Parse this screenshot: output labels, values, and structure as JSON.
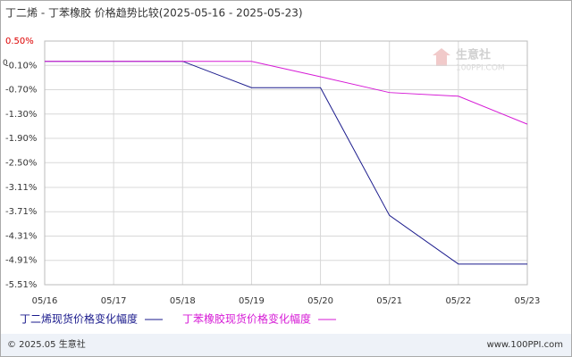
{
  "chart_data": {
    "type": "line",
    "title": "丁二烯 - 丁苯橡胶 价格趋势比较(2025-05-16 - 2025-05-23)",
    "categories": [
      "05/16",
      "05/17",
      "05/18",
      "05/19",
      "05/20",
      "05/21",
      "05/22",
      "05/23"
    ],
    "series": [
      {
        "name": "丁二烯现货价格变化幅度",
        "color": "#1a1a8c",
        "values": [
          0,
          0,
          0,
          -0.65,
          -0.65,
          -3.8,
          -5.0,
          -5.0
        ]
      },
      {
        "name": "丁苯橡胶现货价格变化幅度",
        "color": "#d61ad6",
        "values": [
          0,
          0,
          0,
          0,
          -0.38,
          -0.77,
          -0.86,
          -1.55
        ]
      }
    ],
    "ylim": [
      -5.51,
      0.5
    ],
    "yticks": [
      {
        "value": 0.5,
        "label": "0.50%"
      },
      {
        "value": -0.1,
        "label": "-0.10%"
      },
      {
        "value": -0.7,
        "label": "-0.70%"
      },
      {
        "value": -1.3,
        "label": "-1.30%"
      },
      {
        "value": -1.9,
        "label": "-1.90%"
      },
      {
        "value": -2.5,
        "label": "-2.50%"
      },
      {
        "value": -3.11,
        "label": "-3.11%"
      },
      {
        "value": -3.71,
        "label": "-3.71%"
      },
      {
        "value": -4.31,
        "label": "-4.31%"
      },
      {
        "value": -4.91,
        "label": "-4.91%"
      },
      {
        "value": -5.51,
        "label": "-5.51%"
      }
    ],
    "zero_label": "0",
    "grid": true,
    "watermark": {
      "name": "生意社",
      "site": "100PPI.COM"
    },
    "copyright": "© 2025.05 生意社",
    "source": "www.100PPI.com"
  }
}
